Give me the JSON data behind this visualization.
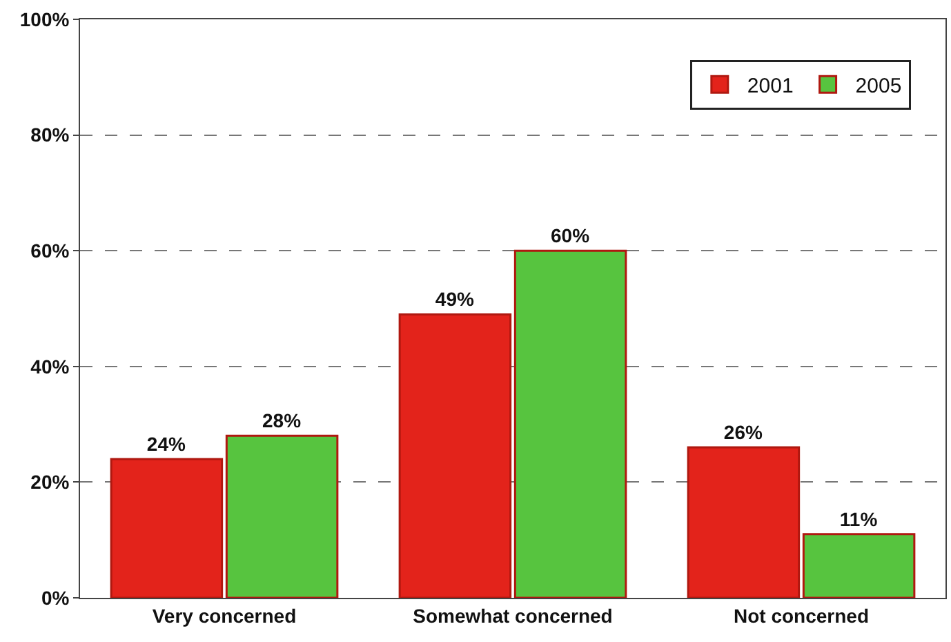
{
  "chart_data": {
    "type": "bar",
    "categories": [
      "Very concerned",
      "Somewhat concerned",
      "Not concerned"
    ],
    "series": [
      {
        "name": "2001",
        "color": "#e3231b",
        "values": [
          24,
          49,
          26
        ],
        "value_labels": [
          "24%",
          "49%",
          "26%"
        ]
      },
      {
        "name": "2005",
        "color": "#57c43f",
        "values": [
          28,
          60,
          11
        ],
        "value_labels": [
          "28%",
          "60%",
          "11%"
        ]
      }
    ],
    "ylim": [
      0,
      100
    ],
    "yticks": [
      {
        "value": 0,
        "label": "0%"
      },
      {
        "value": 20,
        "label": "20%"
      },
      {
        "value": 40,
        "label": "40%"
      },
      {
        "value": 60,
        "label": "60%"
      },
      {
        "value": 80,
        "label": "80%"
      },
      {
        "value": 100,
        "label": "100%"
      }
    ],
    "grid": "y",
    "legend": "top right"
  }
}
